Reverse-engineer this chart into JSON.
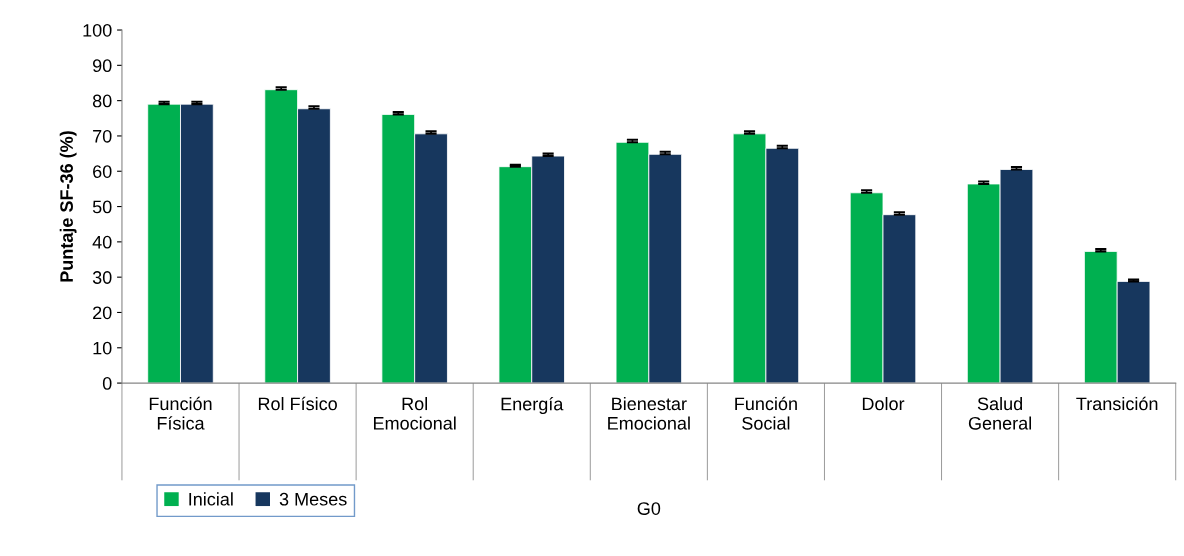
{
  "chart_data": {
    "type": "bar",
    "ylabel": "Puntaje SF-36 (%)",
    "xlabel": "G0",
    "categories": [
      "Función\nFísica",
      "Rol Físico",
      "Rol\nEmocional",
      "Energía",
      "Bienestar\nEmocional",
      "Función\nSocial",
      "Dolor",
      "Salud\nGeneral",
      "Transición"
    ],
    "series": [
      {
        "name": "Inicial",
        "color": "#00b050",
        "values": [
          79.0,
          83.1,
          76.1,
          61.3,
          68.2,
          70.6,
          53.9,
          56.4,
          37.3
        ],
        "errors": [
          0.7,
          0.7,
          0.7,
          0.5,
          0.7,
          0.7,
          0.7,
          0.7,
          0.7
        ]
      },
      {
        "name": "3 Meses",
        "color": "#17375e",
        "values": [
          79.0,
          77.7,
          70.6,
          64.3,
          64.8,
          66.5,
          47.7,
          60.5,
          28.8
        ],
        "errors": [
          0.7,
          0.7,
          0.7,
          0.7,
          0.7,
          0.7,
          0.7,
          0.7,
          0.5
        ]
      }
    ],
    "ylim": [
      0,
      100
    ],
    "yticks": [
      0,
      10,
      20,
      30,
      40,
      50,
      60,
      70,
      80,
      90,
      100
    ],
    "grid": false,
    "legend": "bottom left"
  }
}
